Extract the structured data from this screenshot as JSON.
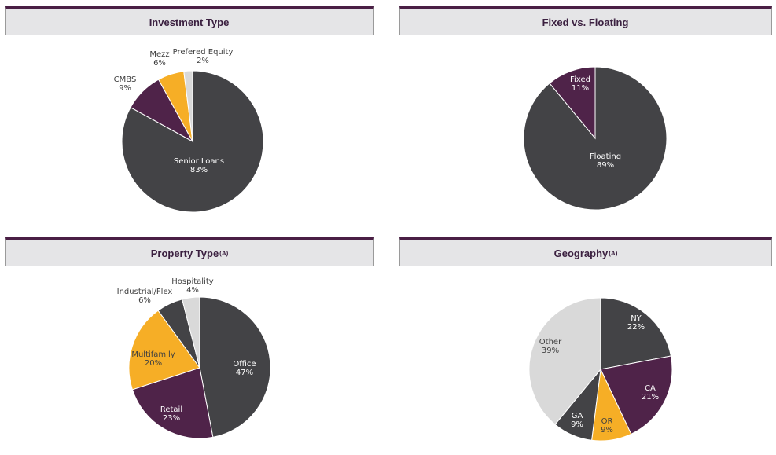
{
  "colors": {
    "dark_gray": "#434346",
    "purple": "#4f2349",
    "gold": "#f6ae26",
    "light_gray": "#d9d9d9",
    "white_text": "#ffffff",
    "dark_text": "#404040"
  },
  "chart_data": [
    {
      "type": "pie",
      "title": "Investment Type",
      "title_sup": "",
      "slices": [
        {
          "label": "Senior Loans",
          "pct_label": "83%",
          "value": 83,
          "color": "#434346",
          "text_color": "#ffffff"
        },
        {
          "label": "CMBS",
          "pct_label": "9%",
          "value": 9,
          "color": "#4f2349",
          "text_color": "#404040"
        },
        {
          "label": "Mezz",
          "pct_label": "6%",
          "value": 6,
          "color": "#f6ae26",
          "text_color": "#404040"
        },
        {
          "label": "Prefered Equity",
          "pct_label": "2%",
          "value": 2,
          "color": "#d9d9d9",
          "text_color": "#404040"
        }
      ]
    },
    {
      "type": "pie",
      "title": "Fixed vs. Floating",
      "title_sup": "",
      "slices": [
        {
          "label": "Floating",
          "pct_label": "89%",
          "value": 89,
          "color": "#434346",
          "text_color": "#ffffff"
        },
        {
          "label": "Fixed",
          "pct_label": "11%",
          "value": 11,
          "color": "#4f2349",
          "text_color": "#ffffff"
        }
      ]
    },
    {
      "type": "pie",
      "title": "Property Type",
      "title_sup": "(A)",
      "slices": [
        {
          "label": "Office",
          "pct_label": "47%",
          "value": 47,
          "color": "#434346",
          "text_color": "#ffffff"
        },
        {
          "label": "Retail",
          "pct_label": "23%",
          "value": 23,
          "color": "#4f2349",
          "text_color": "#ffffff"
        },
        {
          "label": "Multifamily",
          "pct_label": "20%",
          "value": 20,
          "color": "#f6ae26",
          "text_color": "#404040"
        },
        {
          "label": "Industrial/Flex",
          "pct_label": "6%",
          "value": 6,
          "color": "#434346",
          "text_color": "#404040"
        },
        {
          "label": "Hospitality",
          "pct_label": "4%",
          "value": 4,
          "color": "#d9d9d9",
          "text_color": "#404040"
        }
      ]
    },
    {
      "type": "pie",
      "title": "Geography",
      "title_sup": "(A)",
      "slices": [
        {
          "label": "NY",
          "pct_label": "22%",
          "value": 22,
          "color": "#434346",
          "text_color": "#ffffff"
        },
        {
          "label": "CA",
          "pct_label": "21%",
          "value": 21,
          "color": "#4f2349",
          "text_color": "#ffffff"
        },
        {
          "label": "OR",
          "pct_label": "9%",
          "value": 9,
          "color": "#f6ae26",
          "text_color": "#404040"
        },
        {
          "label": "GA",
          "pct_label": "9%",
          "value": 9,
          "color": "#434346",
          "text_color": "#ffffff"
        },
        {
          "label": "Other",
          "pct_label": "39%",
          "value": 39,
          "color": "#d9d9d9",
          "text_color": "#404040"
        }
      ]
    }
  ]
}
